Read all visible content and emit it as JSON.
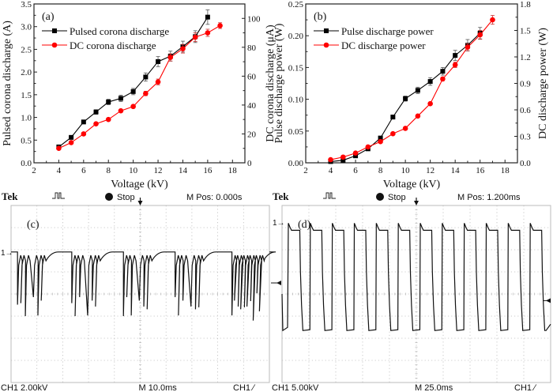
{
  "chart_data": [
    {
      "type": "line",
      "panel_label": "(a)",
      "xlabel": "Voltage (kV)",
      "ylabel": "Pulsed corona discharge (A)",
      "ylabel_right": "DC corona discharge (μA)",
      "xlim": [
        2,
        19
      ],
      "ylim": [
        0,
        3.5
      ],
      "ylim_right": [
        0,
        110
      ],
      "xticks": [
        "2",
        "4",
        "6",
        "8",
        "10",
        "12",
        "14",
        "16",
        "18"
      ],
      "xtick_values": [
        2,
        4,
        6,
        8,
        10,
        12,
        14,
        16,
        18
      ],
      "yticks": [
        "0.0",
        "0.5",
        "1.0",
        "1.5",
        "2.0",
        "2.5",
        "3.0",
        "3.5"
      ],
      "ytick_values": [
        0,
        0.5,
        1.0,
        1.5,
        2.0,
        2.5,
        3.0,
        3.5
      ],
      "yticks_right": [
        "0",
        "20",
        "40",
        "60",
        "80",
        "100"
      ],
      "ytick_right_values": [
        0,
        20,
        40,
        60,
        80,
        100
      ],
      "legend_position": "top-left",
      "series": [
        {
          "name": "Pulsed corona discharge",
          "axis": "left",
          "color": "#000000",
          "marker": "square",
          "x": [
            4,
            5,
            6,
            7,
            8,
            9,
            10,
            11,
            12,
            13,
            14,
            15,
            16
          ],
          "y": [
            0.35,
            0.56,
            0.9,
            1.12,
            1.34,
            1.42,
            1.57,
            1.89,
            2.23,
            2.35,
            2.56,
            2.78,
            3.21
          ],
          "err": [
            0.03,
            0.03,
            0.04,
            0.05,
            0.06,
            0.07,
            0.07,
            0.09,
            0.11,
            0.11,
            0.12,
            0.13,
            0.16
          ]
        },
        {
          "name": "DC corona discharge",
          "axis": "right",
          "color": "#ff0000",
          "marker": "circle",
          "x": [
            4,
            5,
            6,
            7,
            8,
            9,
            10,
            11,
            12,
            13,
            14,
            15,
            16,
            17
          ],
          "y": [
            10,
            14,
            20,
            27,
            30,
            36,
            39,
            48,
            56,
            73,
            79,
            87,
            90,
            95
          ],
          "err": [
            1,
            1,
            1,
            1,
            1,
            1,
            1,
            1.5,
            2,
            2.5,
            3,
            3,
            2.5,
            2
          ]
        }
      ]
    },
    {
      "type": "line",
      "panel_label": "(b)",
      "xlabel": "Voltage (kV)",
      "ylabel": "Pulse discharge power (W)",
      "ylabel_right": "DC discharge power (W)",
      "xlim": [
        2,
        19
      ],
      "ylim": [
        0,
        0.25
      ],
      "ylim_right": [
        0,
        1.8
      ],
      "xticks": [
        "2",
        "4",
        "6",
        "8",
        "10",
        "12",
        "14",
        "16",
        "18"
      ],
      "xtick_values": [
        2,
        4,
        6,
        8,
        10,
        12,
        14,
        16,
        18
      ],
      "yticks": [
        "0.00",
        "0.05",
        "0.10",
        "0.15",
        "0.20",
        "0.25"
      ],
      "ytick_values": [
        0,
        0.05,
        0.1,
        0.15,
        0.2,
        0.25
      ],
      "yticks_right": [
        "0.0",
        "0.3",
        "0.6",
        "0.9",
        "1.2",
        "1.5",
        "1.8"
      ],
      "ytick_right_values": [
        0,
        0.3,
        0.6,
        0.9,
        1.2,
        1.5,
        1.8
      ],
      "legend_position": "top-left",
      "series": [
        {
          "name": "Pulse discharge power",
          "axis": "left",
          "color": "#000000",
          "marker": "square",
          "x": [
            4,
            5,
            6,
            7,
            8,
            9,
            10,
            11,
            12,
            13,
            14,
            15,
            16
          ],
          "y": [
            0.002,
            0.004,
            0.011,
            0.022,
            0.039,
            0.072,
            0.101,
            0.114,
            0.128,
            0.144,
            0.169,
            0.185,
            0.204
          ],
          "err": [
            0.001,
            0.001,
            0.001,
            0.002,
            0.002,
            0.003,
            0.004,
            0.005,
            0.006,
            0.006,
            0.008,
            0.009,
            0.009
          ]
        },
        {
          "name": "DC discharge power",
          "axis": "right",
          "color": "#ff0000",
          "marker": "circle",
          "x": [
            4,
            5,
            6,
            7,
            8,
            9,
            10,
            11,
            12,
            13,
            14,
            15,
            16,
            17
          ],
          "y": [
            0.035,
            0.065,
            0.11,
            0.18,
            0.24,
            0.33,
            0.39,
            0.53,
            0.67,
            0.95,
            1.11,
            1.31,
            1.45,
            1.62
          ],
          "err": [
            0.01,
            0.01,
            0.01,
            0.01,
            0.01,
            0.01,
            0.01,
            0.01,
            0.01,
            0.02,
            0.03,
            0.04,
            0.05,
            0.05
          ]
        }
      ]
    },
    {
      "type": "line",
      "panel_label": "(c)",
      "scope": {
        "brand": "Tek",
        "state": "Stop",
        "mpos": "M Pos: 0.000s",
        "ch_scale": "CH1  2.00kV",
        "timebase": "M 10.0ms",
        "trigger": "CH1 ∕",
        "channel_marker": "1→",
        "divisions_x": 10,
        "divisions_y": 8
      },
      "description": "Pulsed waveform: flat baseline with bursts of negative-going spikes",
      "baseline_div": 2.1,
      "bursts_center_div": [
        1.2,
        3.3,
        5.3,
        7.3,
        9.5
      ],
      "trigger_level_div": 3.5
    },
    {
      "type": "line",
      "panel_label": "(d)",
      "scope": {
        "brand": "Tek",
        "state": "Stop",
        "mpos": "M Pos: 1.200ms",
        "ch_scale": "CH1  5.00kV",
        "timebase": "M 25.0ms",
        "trigger": "CH1 ∕",
        "channel_marker": "1→",
        "divisions_x": 10,
        "divisions_y": 8
      },
      "description": "Repetitive square-like pulses with high level near 1 div and drop to ~5.5 div",
      "pulse_count": 12,
      "trigger_level_div": 4.3
    }
  ]
}
